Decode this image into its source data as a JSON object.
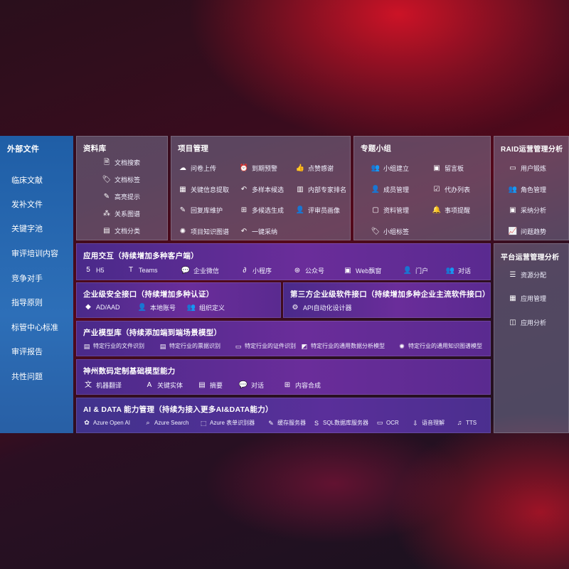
{
  "external": {
    "title": "外部文件",
    "items": [
      "临床文献",
      "发补文件",
      "关键字池",
      "审评培训内容",
      "竞争对手",
      "指导原则",
      "标管中心标准",
      "审评报告",
      "共性问题"
    ]
  },
  "library": {
    "title": "资料库",
    "items": [
      {
        "label": "文档搜索",
        "icon": "doc-search-icon",
        "glyph": "🗎"
      },
      {
        "label": "文档标签",
        "icon": "tag-icon",
        "glyph": "🏷"
      },
      {
        "label": "高亮提示",
        "icon": "highlight-icon",
        "glyph": "✎"
      },
      {
        "label": "关系图谱",
        "icon": "graph-icon",
        "glyph": "⁂"
      },
      {
        "label": "文档分类",
        "icon": "category-icon",
        "glyph": "▤"
      }
    ]
  },
  "project": {
    "title": "项目管理",
    "items": [
      {
        "label": "问卷上传",
        "icon": "cloud-upload-icon",
        "glyph": "☁"
      },
      {
        "label": "到期预警",
        "icon": "alarm-icon",
        "glyph": "⏰"
      },
      {
        "label": "点赞感谢",
        "icon": "thumbs-up-icon",
        "glyph": "👍"
      },
      {
        "label": "关键信息提取",
        "icon": "extract-icon",
        "glyph": "▦"
      },
      {
        "label": "多样本候选",
        "icon": "reply-icon",
        "glyph": "↶"
      },
      {
        "label": "内部专家排名",
        "icon": "ranking-icon",
        "glyph": "▥"
      },
      {
        "label": "回复库维护",
        "icon": "edit-icon",
        "glyph": "✎"
      },
      {
        "label": "多候选生成",
        "icon": "generate-icon",
        "glyph": "⊞"
      },
      {
        "label": "评审员画像",
        "icon": "reviewer-icon",
        "glyph": "👤"
      },
      {
        "label": "项目知识图谱",
        "icon": "knowledge-graph-icon",
        "glyph": "✺"
      },
      {
        "label": "一键采纳",
        "icon": "adopt-icon",
        "glyph": "↶"
      }
    ]
  },
  "group": {
    "title": "专题小组",
    "items": [
      {
        "label": "小组建立",
        "icon": "group-icon",
        "glyph": "👥"
      },
      {
        "label": "留言板",
        "icon": "bbs-icon",
        "glyph": "▣"
      },
      {
        "label": "成员管理",
        "icon": "member-icon",
        "glyph": "👤"
      },
      {
        "label": "代办列表",
        "icon": "todo-icon",
        "glyph": "☑"
      },
      {
        "label": "资料管理",
        "icon": "folder-icon",
        "glyph": "▢"
      },
      {
        "label": "事项提醒",
        "icon": "bell-icon",
        "glyph": "🔔"
      },
      {
        "label": "小组标签",
        "icon": "tag-icon",
        "glyph": "🏷"
      }
    ]
  },
  "raid": {
    "title": "RAID运营管理分析",
    "items": [
      {
        "label": "用户锻炼",
        "icon": "user-card-icon",
        "glyph": "▭"
      },
      {
        "label": "角色管理",
        "icon": "role-icon",
        "glyph": "👥"
      },
      {
        "label": "采纳分析",
        "icon": "qa-icon",
        "glyph": "▣"
      },
      {
        "label": "问题趋势",
        "icon": "trend-icon",
        "glyph": "📈"
      }
    ]
  },
  "platform": {
    "title": "平台运营管理分析",
    "items": [
      {
        "label": "资源分配",
        "icon": "list-icon",
        "glyph": "☰"
      },
      {
        "label": "应用管理",
        "icon": "apps-icon",
        "glyph": "▦"
      },
      {
        "label": "应用分析",
        "icon": "analysis-icon",
        "glyph": "◫"
      }
    ]
  },
  "interaction": {
    "title": "应用交互（持续增加多种客户端）",
    "items": [
      {
        "label": "H5",
        "icon": "h5-icon",
        "glyph": "5"
      },
      {
        "label": "Teams",
        "icon": "teams-icon",
        "glyph": "T"
      },
      {
        "label": "企业微信",
        "icon": "wecom-icon",
        "glyph": "💬"
      },
      {
        "label": "小程序",
        "icon": "miniprogram-icon",
        "glyph": "∂"
      },
      {
        "label": "公众号",
        "icon": "official-account-icon",
        "glyph": "⊛"
      },
      {
        "label": "Web飘窗",
        "icon": "web-window-icon",
        "glyph": "▣"
      },
      {
        "label": "门户",
        "icon": "portal-icon",
        "glyph": "👤"
      },
      {
        "label": "对话",
        "icon": "chat-icon",
        "glyph": "👥"
      }
    ]
  },
  "security": {
    "title": "企业级安全接口（持续增加多种认证）",
    "items": [
      {
        "label": "AD/AAD",
        "icon": "ad-icon",
        "glyph": "◆"
      },
      {
        "label": "本地账号",
        "icon": "local-account-icon",
        "glyph": "👤"
      },
      {
        "label": "组织定义",
        "icon": "org-icon",
        "glyph": "👥"
      }
    ]
  },
  "thirdparty": {
    "title": "第三方企业级软件接口（持续增加多种企业主流软件接口）",
    "items": [
      {
        "label": "API自动化设计器",
        "icon": "api-gear-icon",
        "glyph": "⚙"
      }
    ]
  },
  "industry": {
    "title": "产业模型库（持续添加端到端场景模型）",
    "items": [
      {
        "label": "特定行业的文件识别",
        "icon": "file-recognition-icon",
        "glyph": "▤"
      },
      {
        "label": "特定行业的票据识别",
        "icon": "receipt-icon",
        "glyph": "▤"
      },
      {
        "label": "特定行业的证件识别",
        "icon": "id-card-icon",
        "glyph": "▭"
      },
      {
        "label": "特定行业的通用数据分析模型",
        "icon": "data-analysis-icon",
        "glyph": "◩"
      },
      {
        "label": "特定行业的通用知识图谱模型",
        "icon": "kg-model-icon",
        "glyph": "✺"
      }
    ]
  },
  "base": {
    "title": "神州数码定制基础模型能力",
    "items": [
      {
        "label": "机器翻译",
        "icon": "translate-icon",
        "glyph": "文"
      },
      {
        "label": "关键实体",
        "icon": "entity-icon",
        "glyph": "A"
      },
      {
        "label": "摘要",
        "icon": "summary-icon",
        "glyph": "▤"
      },
      {
        "label": "对话",
        "icon": "chat-bubble-icon",
        "glyph": "💬"
      },
      {
        "label": "内容合成",
        "icon": "synthesis-icon",
        "glyph": "⊞"
      }
    ]
  },
  "ai": {
    "title": "AI & DATA 能力管理（持续为接入更多AI&DATA能力）",
    "items": [
      {
        "label": "Azure Open AI",
        "icon": "openai-icon",
        "glyph": "✿"
      },
      {
        "label": "Azure Search",
        "icon": "azure-search-icon",
        "glyph": "⌕"
      },
      {
        "label": "Azure 表单识别器",
        "icon": "form-recognizer-icon",
        "glyph": "⬚"
      },
      {
        "label": "缓存服务器",
        "icon": "cache-server-icon",
        "glyph": "✎"
      },
      {
        "label": "SQL数据库服务器",
        "icon": "sql-icon",
        "glyph": "S"
      },
      {
        "label": "OCR",
        "icon": "ocr-icon",
        "glyph": "▭"
      },
      {
        "label": "语音理解",
        "icon": "speech-icon",
        "glyph": "⇩"
      },
      {
        "label": "TTS",
        "icon": "tts-icon",
        "glyph": "♫"
      }
    ]
  }
}
